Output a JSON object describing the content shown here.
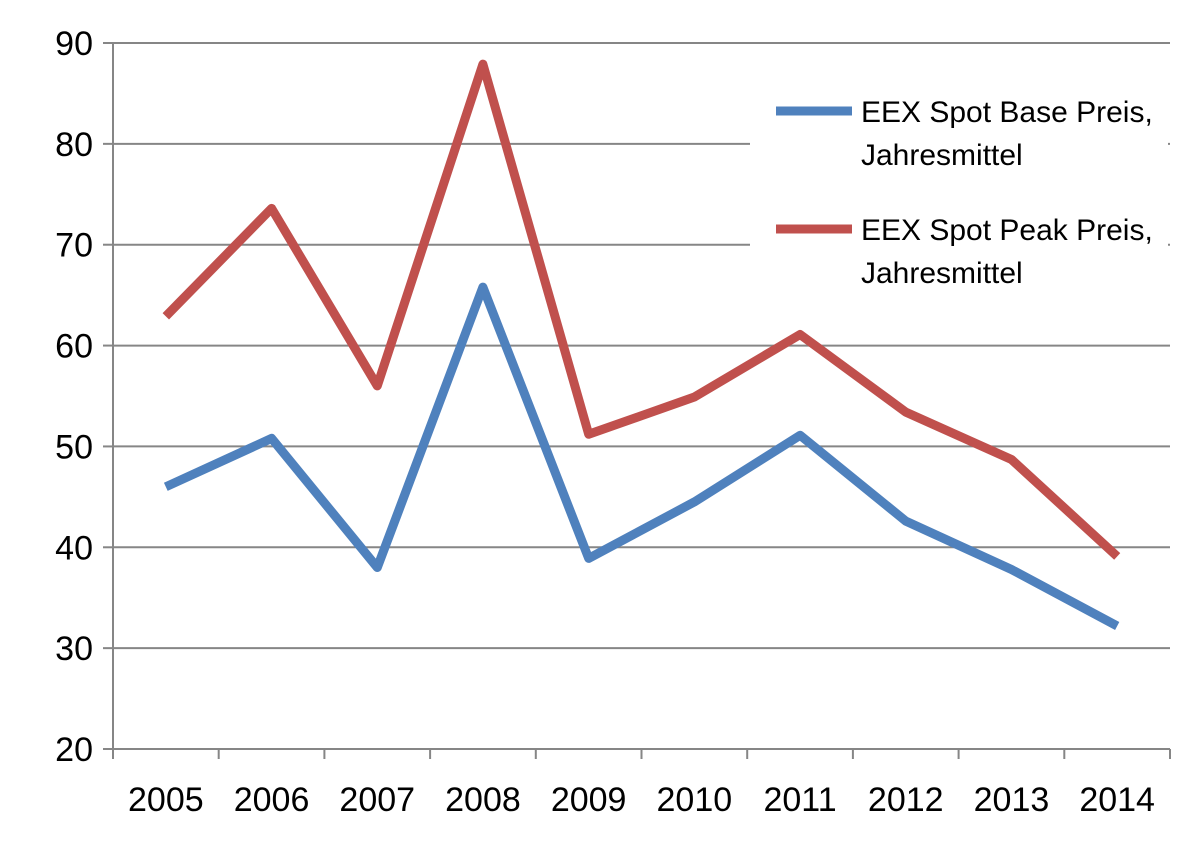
{
  "chart_data": {
    "type": "line",
    "title": "",
    "xlabel": "",
    "ylabel": "",
    "categories": [
      "2005",
      "2006",
      "2007",
      "2008",
      "2009",
      "2010",
      "2011",
      "2012",
      "2013",
      "2014"
    ],
    "ylim": [
      20,
      90
    ],
    "yticks": [
      20,
      30,
      40,
      50,
      60,
      70,
      80,
      90
    ],
    "grid": "horizontal",
    "legend_position": "top-right",
    "series": [
      {
        "name": "EEX Spot Base Preis, Jahresmittel",
        "legend_lines": [
          "EEX Spot Base Preis,",
          "Jahresmittel"
        ],
        "color": "#4f81bd",
        "values": [
          46.0,
          50.8,
          38.0,
          65.8,
          38.9,
          44.5,
          51.1,
          42.6,
          37.8,
          32.2
        ]
      },
      {
        "name": "EEX Spot Peak Preis, Jahresmittel",
        "legend_lines": [
          "EEX Spot Peak Preis,",
          "Jahresmittel"
        ],
        "color": "#c0504d",
        "values": [
          62.9,
          73.6,
          56.0,
          87.9,
          51.2,
          54.9,
          61.1,
          53.4,
          48.7,
          39.1
        ]
      }
    ]
  }
}
